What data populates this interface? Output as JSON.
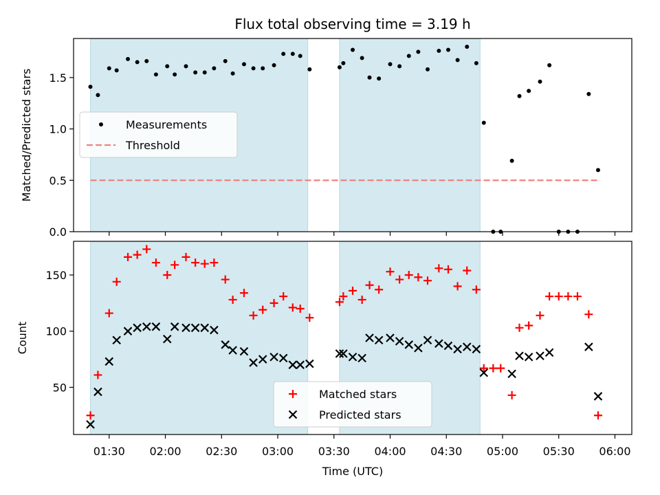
{
  "chart_data": [
    {
      "type": "scatter",
      "title": "Flux total observing time = 3.19 h",
      "xlabel": "",
      "ylabel": "Matched/Predicted stars",
      "ylim": [
        0,
        1.88
      ],
      "yticks": [
        0.0,
        0.5,
        1.0,
        1.5
      ],
      "ytick_labels": [
        "0.0",
        "0.5",
        "1.0",
        "1.5"
      ],
      "xlim": [
        "01:11",
        "06:09"
      ],
      "shaded_intervals": [
        [
          "01:20",
          "03:16"
        ],
        [
          "03:33",
          "04:48"
        ]
      ],
      "threshold": {
        "label": "Threshold",
        "value": 0.5,
        "x_range": [
          "01:20",
          "05:52"
        ],
        "color": "#f08080"
      },
      "legend_position": "center-left",
      "series": [
        {
          "name": "Measurements",
          "marker": "dot",
          "color": "#000000",
          "x": [
            "01:20",
            "01:24",
            "01:30",
            "01:34",
            "01:40",
            "01:45",
            "01:50",
            "01:55",
            "02:01",
            "02:05",
            "02:11",
            "02:16",
            "02:21",
            "02:26",
            "02:32",
            "02:36",
            "02:42",
            "02:47",
            "02:52",
            "02:58",
            "03:03",
            "03:08",
            "03:12",
            "03:17",
            "03:33",
            "03:35",
            "03:40",
            "03:45",
            "03:49",
            "03:54",
            "04:00",
            "04:05",
            "04:10",
            "04:15",
            "04:20",
            "04:26",
            "04:31",
            "04:36",
            "04:41",
            "04:46",
            "04:50",
            "04:55",
            "04:59",
            "05:05",
            "05:09",
            "05:14",
            "05:20",
            "05:25",
            "05:30",
            "05:35",
            "05:40",
            "05:46",
            "05:51"
          ],
          "y": [
            1.41,
            1.33,
            1.59,
            1.57,
            1.68,
            1.65,
            1.66,
            1.53,
            1.61,
            1.53,
            1.61,
            1.55,
            1.55,
            1.59,
            1.66,
            1.54,
            1.63,
            1.59,
            1.59,
            1.62,
            1.73,
            1.73,
            1.71,
            1.58,
            1.6,
            1.64,
            1.77,
            1.69,
            1.5,
            1.49,
            1.63,
            1.61,
            1.71,
            1.75,
            1.58,
            1.76,
            1.77,
            1.67,
            1.8,
            1.64,
            1.06,
            0.0,
            0.0,
            0.69,
            1.32,
            1.37,
            1.46,
            1.62,
            0.0,
            0.0,
            0.0,
            1.34,
            0.6
          ]
        }
      ]
    },
    {
      "type": "scatter",
      "title": "",
      "xlabel": "Time (UTC)",
      "ylabel": "Count",
      "ylim": [
        8,
        180
      ],
      "yticks": [
        50,
        100,
        150
      ],
      "ytick_labels": [
        "50",
        "100",
        "150"
      ],
      "xlim": [
        "01:11",
        "06:09"
      ],
      "xticks": [
        "01:30",
        "02:00",
        "02:30",
        "03:00",
        "03:30",
        "04:00",
        "04:30",
        "05:00",
        "05:30",
        "06:00"
      ],
      "xtick_labels": [
        "01:30",
        "02:00",
        "02:30",
        "03:00",
        "03:30",
        "04:00",
        "04:30",
        "05:00",
        "05:30",
        "06:00"
      ],
      "shaded_intervals": [
        [
          "01:20",
          "03:16"
        ],
        [
          "03:33",
          "04:48"
        ]
      ],
      "legend_position": "lower-center",
      "series": [
        {
          "name": "Matched stars",
          "marker": "plus",
          "color": "#ff0000",
          "x": [
            "01:20",
            "01:24",
            "01:30",
            "01:34",
            "01:40",
            "01:45",
            "01:50",
            "01:55",
            "02:01",
            "02:05",
            "02:11",
            "02:16",
            "02:21",
            "02:26",
            "02:32",
            "02:36",
            "02:42",
            "02:47",
            "02:52",
            "02:58",
            "03:03",
            "03:08",
            "03:12",
            "03:17",
            "03:33",
            "03:35",
            "03:40",
            "03:45",
            "03:49",
            "03:54",
            "04:00",
            "04:05",
            "04:10",
            "04:15",
            "04:20",
            "04:26",
            "04:31",
            "04:36",
            "04:41",
            "04:46",
            "04:50",
            "04:55",
            "04:59",
            "05:05",
            "05:09",
            "05:14",
            "05:20",
            "05:25",
            "05:30",
            "05:35",
            "05:40",
            "05:46",
            "05:51"
          ],
          "y": [
            25,
            61,
            116,
            144,
            166,
            168,
            173,
            161,
            150,
            159,
            166,
            161,
            160,
            161,
            146,
            128,
            134,
            114,
            119,
            125,
            131,
            121,
            120,
            112,
            126,
            131,
            136,
            128,
            141,
            137,
            153,
            146,
            150,
            148,
            145,
            156,
            155,
            140,
            154,
            137,
            67,
            67,
            67,
            43,
            103,
            105,
            114,
            131,
            131,
            131,
            131,
            115,
            25
          ]
        },
        {
          "name": "Predicted stars",
          "marker": "x",
          "color": "#000000",
          "x": [
            "01:20",
            "01:24",
            "01:30",
            "01:34",
            "01:40",
            "01:45",
            "01:50",
            "01:55",
            "02:01",
            "02:05",
            "02:11",
            "02:16",
            "02:21",
            "02:26",
            "02:32",
            "02:36",
            "02:42",
            "02:47",
            "02:52",
            "02:58",
            "03:03",
            "03:08",
            "03:12",
            "03:17",
            "03:33",
            "03:35",
            "03:40",
            "03:45",
            "03:49",
            "03:54",
            "04:00",
            "04:05",
            "04:10",
            "04:15",
            "04:20",
            "04:26",
            "04:31",
            "04:36",
            "04:41",
            "04:46",
            "04:50",
            "05:05",
            "05:09",
            "05:14",
            "05:20",
            "05:25",
            "05:46",
            "05:51"
          ],
          "y": [
            17,
            46,
            73,
            92,
            100,
            103,
            104,
            104,
            93,
            104,
            103,
            103,
            103,
            101,
            88,
            83,
            82,
            72,
            75,
            77,
            76,
            70,
            70,
            71,
            80,
            80,
            77,
            76,
            94,
            92,
            94,
            91,
            88,
            85,
            92,
            89,
            87,
            84,
            86,
            84,
            63,
            62,
            78,
            77,
            78,
            81,
            86,
            42
          ]
        }
      ]
    }
  ]
}
